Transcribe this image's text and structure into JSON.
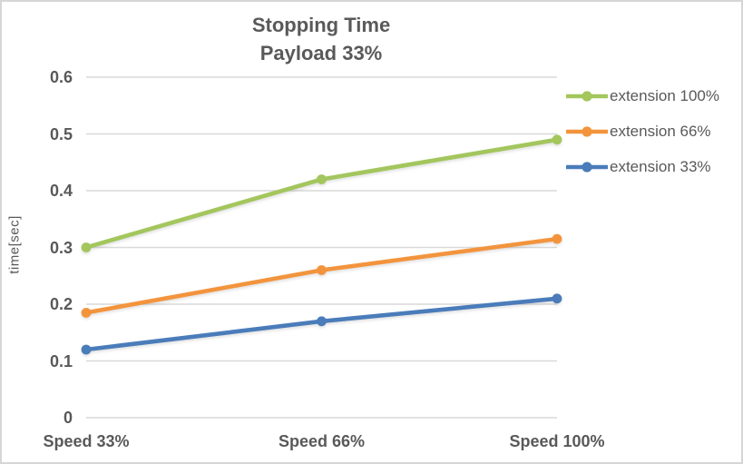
{
  "chart_data": {
    "type": "line",
    "title": "Stopping Time",
    "subtitle": "Payload 33%",
    "ylabel": "time[sec]",
    "categories": [
      "Speed 33%",
      "Speed 66%",
      "Speed 100%"
    ],
    "series": [
      {
        "name": "extension 100%",
        "color": "#a3c65d",
        "values": [
          0.3,
          0.42,
          0.49
        ]
      },
      {
        "name": "extension 66%",
        "color": "#f3943d",
        "values": [
          0.185,
          0.26,
          0.315
        ]
      },
      {
        "name": "extension 33%",
        "color": "#4a7cba",
        "values": [
          0.12,
          0.17,
          0.21
        ]
      }
    ],
    "ylim": [
      0,
      0.6
    ],
    "yticks": [
      "0.6",
      "0.5",
      "0.4",
      "0.3",
      "0.2",
      "0.1",
      "0"
    ],
    "ytick_values": [
      0.6,
      0.5,
      0.4,
      0.3,
      0.2,
      0.1,
      0
    ],
    "grid": true,
    "legend_position": "right",
    "colors": {
      "gridline": "#d9d9d9",
      "text": "#595959",
      "frame_border": "#d6d6d6",
      "background": "#ffffff"
    }
  }
}
